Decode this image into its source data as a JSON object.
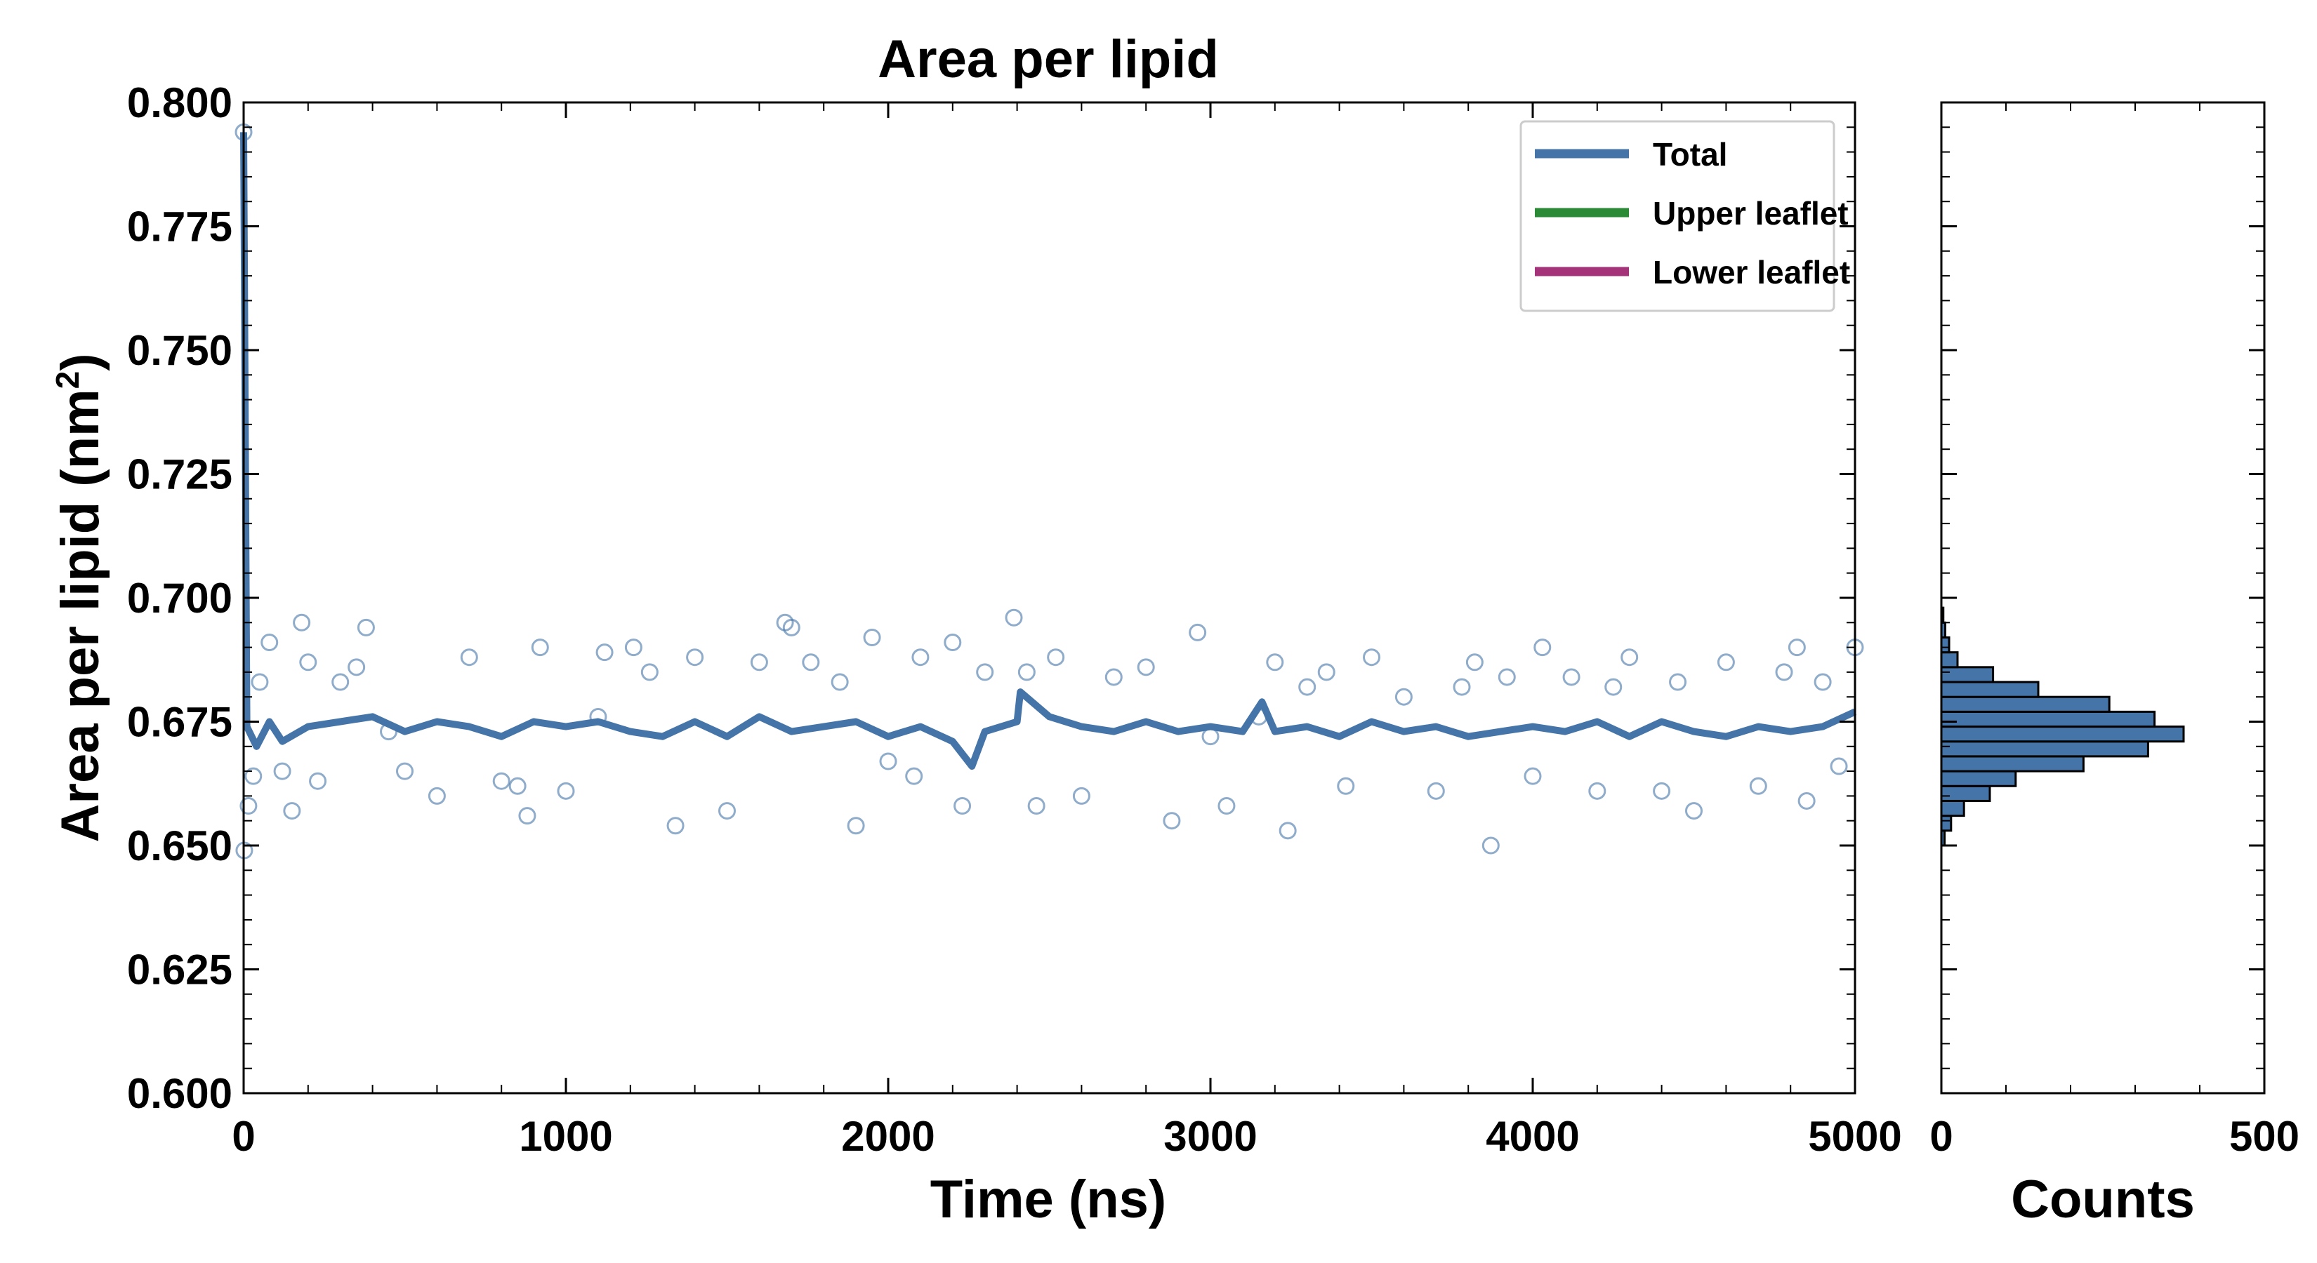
{
  "chart_data": [
    {
      "type": "scatter",
      "title": "Area per lipid",
      "xlabel": "Time (ns)",
      "ylabel": "Area per lipid (nm",
      "ylabel_superscript": "2",
      "ylabel_suffix": ")",
      "xlim": [
        0,
        5000
      ],
      "ylim": [
        0.6,
        0.8
      ],
      "xticks": [
        0,
        1000,
        2000,
        3000,
        4000,
        5000
      ],
      "xtick_labels": [
        "0",
        "1000",
        "2000",
        "3000",
        "4000",
        "5000"
      ],
      "yticks": [
        0.6,
        0.625,
        0.65,
        0.675,
        0.7,
        0.725,
        0.75,
        0.775,
        0.8
      ],
      "ytick_labels": [
        "0.600",
        "0.625",
        "0.650",
        "0.675",
        "0.700",
        "0.725",
        "0.750",
        "0.775",
        "0.800"
      ],
      "grid": false,
      "legend_position": "top-right",
      "legend": [
        {
          "label": "Total",
          "color": "#4575a8"
        },
        {
          "label": "Upper leaflet",
          "color": "#2a8a35"
        },
        {
          "label": "Lower leaflet",
          "color": "#a53379"
        }
      ],
      "series": [
        {
          "name": "Total",
          "color": "#4575a8",
          "marker": "open-circle",
          "points": [
            [
              0,
              0.794
            ],
            [
              2,
              0.649
            ],
            [
              15,
              0.658
            ],
            [
              30,
              0.664
            ],
            [
              50,
              0.683
            ],
            [
              80,
              0.691
            ],
            [
              120,
              0.665
            ],
            [
              150,
              0.657
            ],
            [
              180,
              0.695
            ],
            [
              200,
              0.687
            ],
            [
              230,
              0.663
            ],
            [
              300,
              0.683
            ],
            [
              350,
              0.686
            ],
            [
              380,
              0.694
            ],
            [
              450,
              0.673
            ],
            [
              500,
              0.665
            ],
            [
              600,
              0.66
            ],
            [
              700,
              0.688
            ],
            [
              800,
              0.663
            ],
            [
              850,
              0.662
            ],
            [
              880,
              0.656
            ],
            [
              920,
              0.69
            ],
            [
              1000,
              0.661
            ],
            [
              1100,
              0.676
            ],
            [
              1120,
              0.689
            ],
            [
              1210,
              0.69
            ],
            [
              1260,
              0.685
            ],
            [
              1340,
              0.654
            ],
            [
              1400,
              0.688
            ],
            [
              1500,
              0.657
            ],
            [
              1600,
              0.687
            ],
            [
              1680,
              0.695
            ],
            [
              1700,
              0.694
            ],
            [
              1760,
              0.687
            ],
            [
              1850,
              0.683
            ],
            [
              1900,
              0.654
            ],
            [
              1950,
              0.692
            ],
            [
              2000,
              0.667
            ],
            [
              2080,
              0.664
            ],
            [
              2100,
              0.688
            ],
            [
              2200,
              0.691
            ],
            [
              2230,
              0.658
            ],
            [
              2300,
              0.685
            ],
            [
              2390,
              0.696
            ],
            [
              2430,
              0.685
            ],
            [
              2460,
              0.658
            ],
            [
              2520,
              0.688
            ],
            [
              2600,
              0.66
            ],
            [
              2700,
              0.684
            ],
            [
              2800,
              0.686
            ],
            [
              2880,
              0.655
            ],
            [
              2960,
              0.693
            ],
            [
              3000,
              0.672
            ],
            [
              3050,
              0.658
            ],
            [
              3150,
              0.676
            ],
            [
              3200,
              0.687
            ],
            [
              3240,
              0.653
            ],
            [
              3300,
              0.682
            ],
            [
              3360,
              0.685
            ],
            [
              3420,
              0.662
            ],
            [
              3500,
              0.688
            ],
            [
              3600,
              0.68
            ],
            [
              3700,
              0.661
            ],
            [
              3780,
              0.682
            ],
            [
              3820,
              0.687
            ],
            [
              3870,
              0.65
            ],
            [
              3920,
              0.684
            ],
            [
              4000,
              0.664
            ],
            [
              4030,
              0.69
            ],
            [
              4120,
              0.684
            ],
            [
              4200,
              0.661
            ],
            [
              4250,
              0.682
            ],
            [
              4300,
              0.688
            ],
            [
              4400,
              0.661
            ],
            [
              4450,
              0.683
            ],
            [
              4500,
              0.657
            ],
            [
              4600,
              0.687
            ],
            [
              4700,
              0.662
            ],
            [
              4780,
              0.685
            ],
            [
              4820,
              0.69
            ],
            [
              4850,
              0.659
            ],
            [
              4900,
              0.683
            ],
            [
              4950,
              0.666
            ],
            [
              5000,
              0.69
            ]
          ]
        },
        {
          "name": "Total",
          "color": "#4575a8",
          "marker": "line",
          "points": [
            [
              0,
              0.794
            ],
            [
              10,
              0.674
            ],
            [
              40,
              0.67
            ],
            [
              80,
              0.675
            ],
            [
              120,
              0.671
            ],
            [
              200,
              0.674
            ],
            [
              300,
              0.675
            ],
            [
              400,
              0.676
            ],
            [
              500,
              0.673
            ],
            [
              600,
              0.675
            ],
            [
              700,
              0.674
            ],
            [
              800,
              0.672
            ],
            [
              900,
              0.675
            ],
            [
              1000,
              0.674
            ],
            [
              1100,
              0.675
            ],
            [
              1200,
              0.673
            ],
            [
              1300,
              0.672
            ],
            [
              1400,
              0.675
            ],
            [
              1500,
              0.672
            ],
            [
              1600,
              0.676
            ],
            [
              1700,
              0.673
            ],
            [
              1800,
              0.674
            ],
            [
              1900,
              0.675
            ],
            [
              2000,
              0.672
            ],
            [
              2100,
              0.674
            ],
            [
              2200,
              0.671
            ],
            [
              2260,
              0.666
            ],
            [
              2300,
              0.673
            ],
            [
              2400,
              0.675
            ],
            [
              2410,
              0.681
            ],
            [
              2500,
              0.676
            ],
            [
              2600,
              0.674
            ],
            [
              2700,
              0.673
            ],
            [
              2800,
              0.675
            ],
            [
              2900,
              0.673
            ],
            [
              3000,
              0.674
            ],
            [
              3100,
              0.673
            ],
            [
              3160,
              0.679
            ],
            [
              3200,
              0.673
            ],
            [
              3300,
              0.674
            ],
            [
              3400,
              0.672
            ],
            [
              3500,
              0.675
            ],
            [
              3600,
              0.673
            ],
            [
              3700,
              0.674
            ],
            [
              3800,
              0.672
            ],
            [
              3900,
              0.673
            ],
            [
              4000,
              0.674
            ],
            [
              4100,
              0.673
            ],
            [
              4200,
              0.675
            ],
            [
              4300,
              0.672
            ],
            [
              4400,
              0.675
            ],
            [
              4500,
              0.673
            ],
            [
              4600,
              0.672
            ],
            [
              4700,
              0.674
            ],
            [
              4800,
              0.673
            ],
            [
              4900,
              0.674
            ],
            [
              5000,
              0.677
            ]
          ]
        }
      ]
    },
    {
      "type": "bar",
      "orientation": "horizontal",
      "xlabel": "Counts",
      "ylabel": "",
      "xlim": [
        0,
        500
      ],
      "ylim": [
        0.6,
        0.8
      ],
      "xticks": [
        0,
        500
      ],
      "xtick_labels": [
        "0",
        "500"
      ],
      "grid": false,
      "series": [
        {
          "color": "#4575a8",
          "bins": [
            {
              "y0": 0.65,
              "y1": 0.653,
              "count": 5
            },
            {
              "y0": 0.653,
              "y1": 0.656,
              "count": 15
            },
            {
              "y0": 0.656,
              "y1": 0.659,
              "count": 35
            },
            {
              "y0": 0.659,
              "y1": 0.662,
              "count": 75
            },
            {
              "y0": 0.662,
              "y1": 0.665,
              "count": 115
            },
            {
              "y0": 0.665,
              "y1": 0.668,
              "count": 220
            },
            {
              "y0": 0.668,
              "y1": 0.671,
              "count": 320
            },
            {
              "y0": 0.671,
              "y1": 0.674,
              "count": 375
            },
            {
              "y0": 0.674,
              "y1": 0.677,
              "count": 330
            },
            {
              "y0": 0.677,
              "y1": 0.68,
              "count": 260
            },
            {
              "y0": 0.68,
              "y1": 0.683,
              "count": 150
            },
            {
              "y0": 0.683,
              "y1": 0.686,
              "count": 80
            },
            {
              "y0": 0.686,
              "y1": 0.689,
              "count": 25
            },
            {
              "y0": 0.689,
              "y1": 0.692,
              "count": 12
            },
            {
              "y0": 0.692,
              "y1": 0.695,
              "count": 6
            },
            {
              "y0": 0.695,
              "y1": 0.698,
              "count": 3
            }
          ]
        }
      ]
    }
  ]
}
